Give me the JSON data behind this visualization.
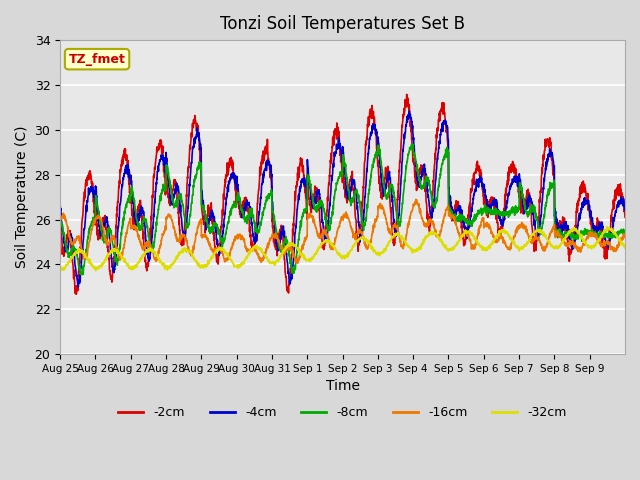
{
  "title": "Tonzi Soil Temperatures Set B",
  "xlabel": "Time",
  "ylabel": "Soil Temperature (C)",
  "ylim": [
    20,
    34
  ],
  "background_color": "#d8d8d8",
  "plot_bg_color": "#e8e8e8",
  "grid_color": "white",
  "annotation_text": "TZ_fmet",
  "annotation_bg": "#ffffcc",
  "annotation_edge": "#aaaa00",
  "annotation_text_color": "#cc0000",
  "series": [
    {
      "label": "-2cm",
      "color": "#dd0000",
      "lw": 1.2
    },
    {
      "label": "-4cm",
      "color": "#0000cc",
      "lw": 1.2
    },
    {
      "label": "-8cm",
      "color": "#00aa00",
      "lw": 1.2
    },
    {
      "label": "-16cm",
      "color": "#ee7700",
      "lw": 1.2
    },
    {
      "label": "-32cm",
      "color": "#dddd00",
      "lw": 1.2
    }
  ],
  "xtick_labels": [
    "Aug 25",
    "Aug 26",
    "Aug 27",
    "Aug 28",
    "Aug 29",
    "Aug 30",
    "Aug 31",
    "Sep 1",
    "Sep 2",
    "Sep 3",
    "Sep 4",
    "Sep 5",
    "Sep 6",
    "Sep 7",
    "Sep 8",
    "Sep 9"
  ],
  "ytick_values": [
    20,
    22,
    24,
    26,
    28,
    30,
    32,
    34
  ]
}
